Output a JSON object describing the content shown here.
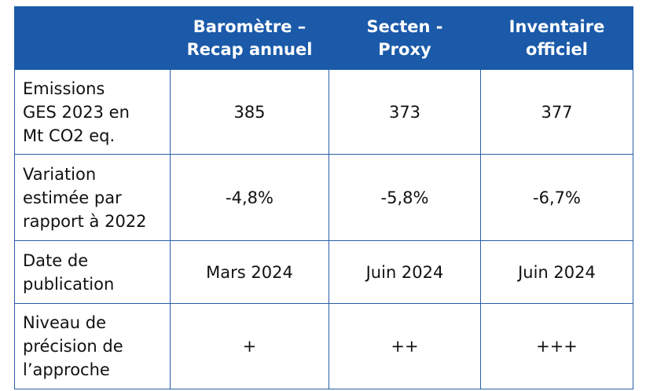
{
  "table": {
    "header": {
      "corner": "",
      "columns": [
        [
          "Baromètre –",
          "Recap annuel"
        ],
        [
          "Secten -",
          "Proxy"
        ],
        [
          "Inventaire",
          "officiel"
        ]
      ]
    },
    "rows": [
      {
        "label": [
          "Emissions",
          "GES 2023 en",
          "Mt CO2 eq."
        ],
        "values": [
          "385",
          "373",
          "377"
        ]
      },
      {
        "label": [
          "Variation",
          "estimée par",
          "rapport à 2022"
        ],
        "values": [
          "-4,8%",
          "-5,8%",
          "-6,7%"
        ]
      },
      {
        "label": [
          "Date de",
          "publication"
        ],
        "values": [
          "Mars 2024",
          "Juin 2024",
          "Juin 2024"
        ]
      },
      {
        "label": [
          "Niveau de",
          "précision de",
          "l’approche"
        ],
        "values": [
          "+",
          "++",
          "+++"
        ]
      }
    ]
  },
  "colors": {
    "header_background": "#1b5aa9",
    "header_text": "#ffffff",
    "border": "#2a5ea8"
  }
}
